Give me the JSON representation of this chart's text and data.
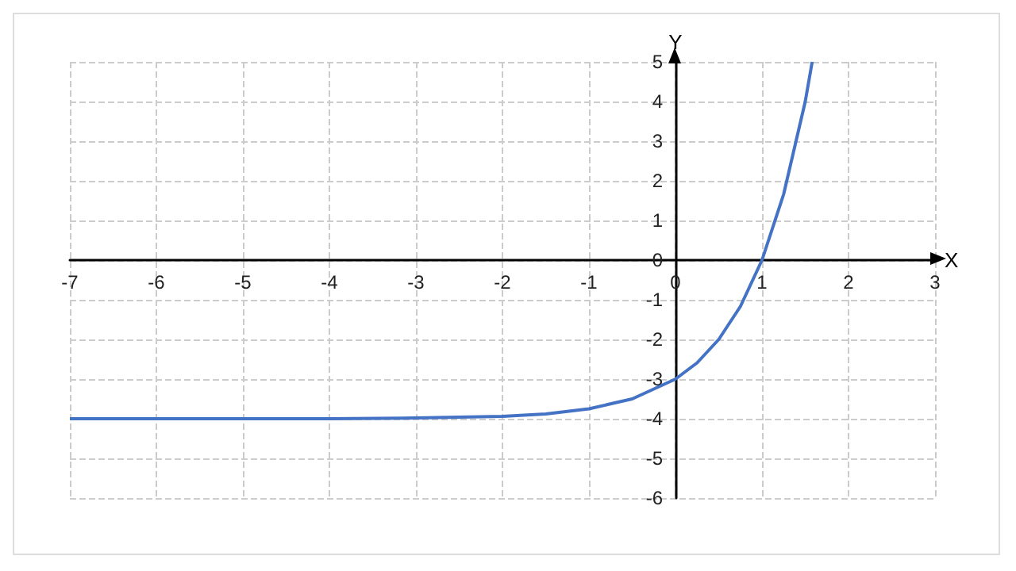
{
  "chart_data": {
    "type": "line",
    "xlabel": "X",
    "ylabel": "Y",
    "x": [
      -7,
      -6,
      -5,
      -4,
      -3,
      -2,
      -1.5,
      -1,
      -0.5,
      0,
      0.25,
      0.5,
      0.75,
      1,
      1.25,
      1.5,
      1.58
    ],
    "series": [
      {
        "color": "#4472c4",
        "values": [
          -4,
          -4,
          -4,
          -4,
          -3.98,
          -3.94,
          -3.88,
          -3.75,
          -3.5,
          -3,
          -2.59,
          -2,
          -1.17,
          0,
          1.66,
          4,
          5
        ]
      }
    ],
    "xlim": [
      -7,
      3
    ],
    "ylim": [
      -6,
      5
    ],
    "xticks": [
      -7,
      -6,
      -5,
      -4,
      -3,
      -2,
      -1,
      0,
      1,
      2,
      3
    ],
    "yticks": [
      -6,
      -5,
      -4,
      -3,
      -2,
      -1,
      0,
      1,
      2,
      3,
      4,
      5
    ],
    "grid": true,
    "marker": "none",
    "line_style": "solid"
  }
}
